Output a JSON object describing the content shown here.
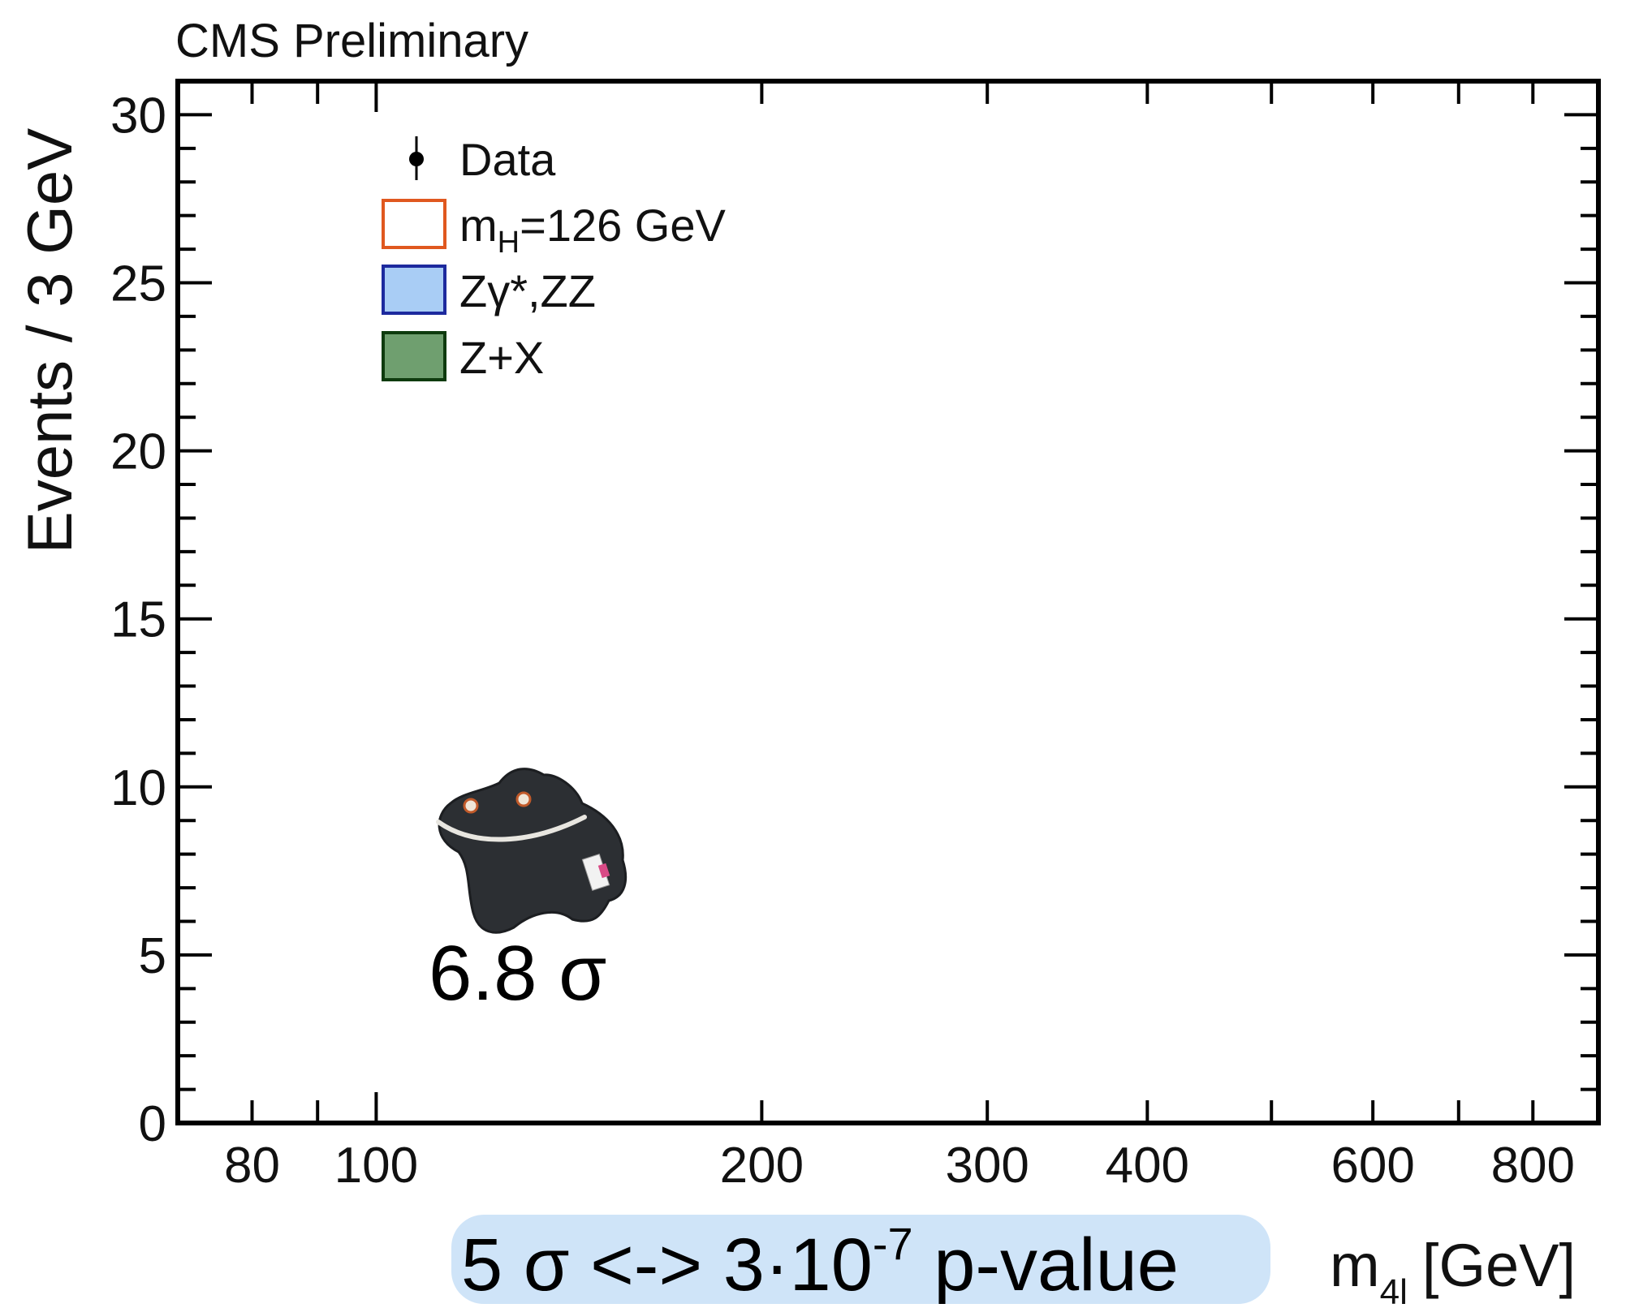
{
  "header": {
    "experiment_label": "CMS Preliminary"
  },
  "chart_data": {
    "type": "scatter",
    "title": "",
    "ylabel": "Events / 3 GeV",
    "xlabel": {
      "main": "m",
      "sub": "4l",
      "unit": "[GeV]"
    },
    "x_scale": "log",
    "xlim": [
      70,
      900
    ],
    "ylim": [
      0,
      31
    ],
    "x_ticks": [
      80,
      100,
      200,
      300,
      400,
      600,
      800
    ],
    "y_ticks": [
      0,
      5,
      10,
      15,
      20,
      25,
      30
    ],
    "grid": false,
    "legend_placement": "top-left",
    "legend": [
      {
        "marker": "point",
        "label": "Data",
        "color": "#000000"
      },
      {
        "marker": "box",
        "label_main": "m",
        "label_sub": "H",
        "label_rest": "=126 GeV",
        "stroke": "#e0581f",
        "fill": "#ffffff"
      },
      {
        "marker": "box",
        "label": "Zγ*,ZZ",
        "stroke": "#1d2a9e",
        "fill": "#a9cdf5"
      },
      {
        "marker": "box",
        "label": "Z+X",
        "stroke": "#0e3b0e",
        "fill": "#6f9f6f"
      }
    ],
    "series": []
  },
  "annotations": {
    "significance": "6.8 σ",
    "pvalue_relation": {
      "pre": "5 σ <-> 3·10",
      "exponent": "-7",
      "post": " p-value",
      "background": "#cfe4f8"
    },
    "mascot_icon": "higgs-plush-icon"
  }
}
